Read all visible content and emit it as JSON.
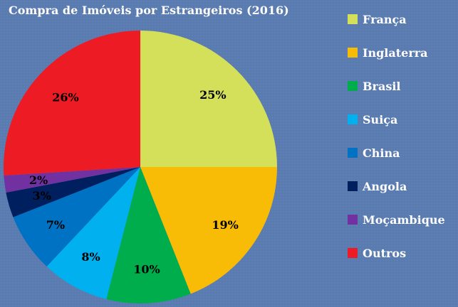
{
  "chart_data": {
    "type": "pie",
    "title": "Compra de Imóveis por Estrangeiros (2016)",
    "categories": [
      "França",
      "Inglaterra",
      "Brasil",
      "Suiça",
      "China",
      "Angola",
      "Moçambique",
      "Outros"
    ],
    "values": [
      25,
      19,
      10,
      8,
      7,
      3,
      2,
      26
    ],
    "labels": [
      "25%",
      "19%",
      "10%",
      "8%",
      "7%",
      "3%",
      "2%",
      "26%"
    ],
    "colors": [
      "#d4df5a",
      "#f9bc06",
      "#00ad4d",
      "#00b0ef",
      "#0072c4",
      "#001f5e",
      "#7231a0",
      "#ed1c24"
    ],
    "legend_position": "right"
  }
}
